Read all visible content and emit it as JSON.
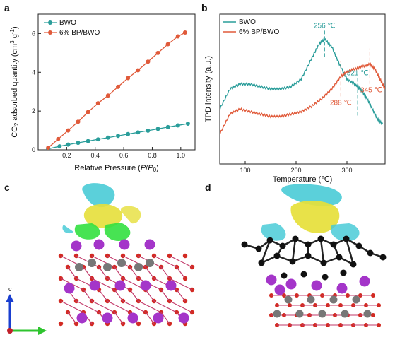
{
  "panel_labels": {
    "a": "a",
    "b": "b",
    "c": "c",
    "d": "d"
  },
  "colors": {
    "bwo": "#2a9d9a",
    "bpbwo": "#e05a3a"
  },
  "chart_data": [
    {
      "type": "line",
      "panel": "a",
      "xlabel": "Relative Pressure (P/P0)",
      "ylabel": "CO2 adsorbed quantity (cm3 g-1)",
      "xlim": [
        0.0,
        1.1
      ],
      "ylim": [
        0,
        7
      ],
      "xticks": [
        "0.2",
        "0.4",
        "0.6",
        "0.8",
        "1.0"
      ],
      "xtick_values": [
        0.2,
        0.4,
        0.6,
        0.8,
        1.0
      ],
      "yticks": [
        "0",
        "2",
        "4",
        "6"
      ],
      "ytick_values": [
        0,
        2,
        4,
        6
      ],
      "legend_position": "top-left",
      "series": [
        {
          "name": "BWO",
          "color": "#2a9d9a",
          "x": [
            0.07,
            0.15,
            0.21,
            0.28,
            0.35,
            0.42,
            0.49,
            0.56,
            0.63,
            0.7,
            0.77,
            0.84,
            0.91,
            0.98,
            1.05
          ],
          "y": [
            0.05,
            0.18,
            0.27,
            0.36,
            0.45,
            0.54,
            0.63,
            0.72,
            0.81,
            0.9,
            0.99,
            1.08,
            1.17,
            1.26,
            1.35
          ]
        },
        {
          "name": "6% BP/BWO",
          "color": "#e05a3a",
          "x": [
            0.07,
            0.14,
            0.21,
            0.28,
            0.35,
            0.42,
            0.49,
            0.56,
            0.63,
            0.7,
            0.77,
            0.84,
            0.91,
            0.98,
            1.03
          ],
          "y": [
            0.1,
            0.55,
            1.0,
            1.45,
            1.95,
            2.4,
            2.8,
            3.25,
            3.7,
            4.1,
            4.55,
            5.0,
            5.45,
            5.85,
            6.05
          ]
        }
      ]
    },
    {
      "type": "line",
      "panel": "b",
      "xlabel": "Temperature (℃)",
      "ylabel": "TPD intensity (a.u.)",
      "xlim": [
        50,
        375
      ],
      "xticks": [
        "100",
        "200",
        "300"
      ],
      "xtick_values": [
        100,
        200,
        300
      ],
      "legend_position": "top-left",
      "series": [
        {
          "name": "BWO",
          "color": "#2a9d9a",
          "x": [
            50,
            70,
            90,
            110,
            130,
            150,
            170,
            190,
            210,
            230,
            245,
            256,
            270,
            285,
            300,
            315,
            321,
            330,
            340,
            350,
            360,
            370
          ],
          "y": [
            0.62,
            0.7,
            0.72,
            0.72,
            0.71,
            0.7,
            0.7,
            0.71,
            0.74,
            0.82,
            0.88,
            0.9,
            0.87,
            0.8,
            0.74,
            0.72,
            0.71,
            0.69,
            0.66,
            0.62,
            0.58,
            0.56
          ]
        },
        {
          "name": "6% BP/BWO",
          "color": "#e05a3a",
          "x": [
            50,
            70,
            90,
            110,
            130,
            150,
            170,
            190,
            210,
            230,
            250,
            270,
            288,
            300,
            315,
            330,
            345,
            355,
            365,
            375
          ],
          "y": [
            0.52,
            0.6,
            0.62,
            0.61,
            0.6,
            0.59,
            0.59,
            0.6,
            0.61,
            0.63,
            0.66,
            0.7,
            0.75,
            0.77,
            0.78,
            0.79,
            0.8,
            0.78,
            0.74,
            0.7
          ]
        }
      ],
      "annotations": [
        {
          "text": "256 ℃",
          "x": 256,
          "series": "BWO"
        },
        {
          "text": "321 ℃",
          "x": 321,
          "series": "BWO"
        },
        {
          "text": "288 ℃",
          "x": 288,
          "series": "6% BP/BWO"
        },
        {
          "text": "345 ℃",
          "x": 345,
          "series": "6% BP/BWO"
        }
      ]
    }
  ],
  "axis_icons": {
    "c_axis_label": "c"
  }
}
